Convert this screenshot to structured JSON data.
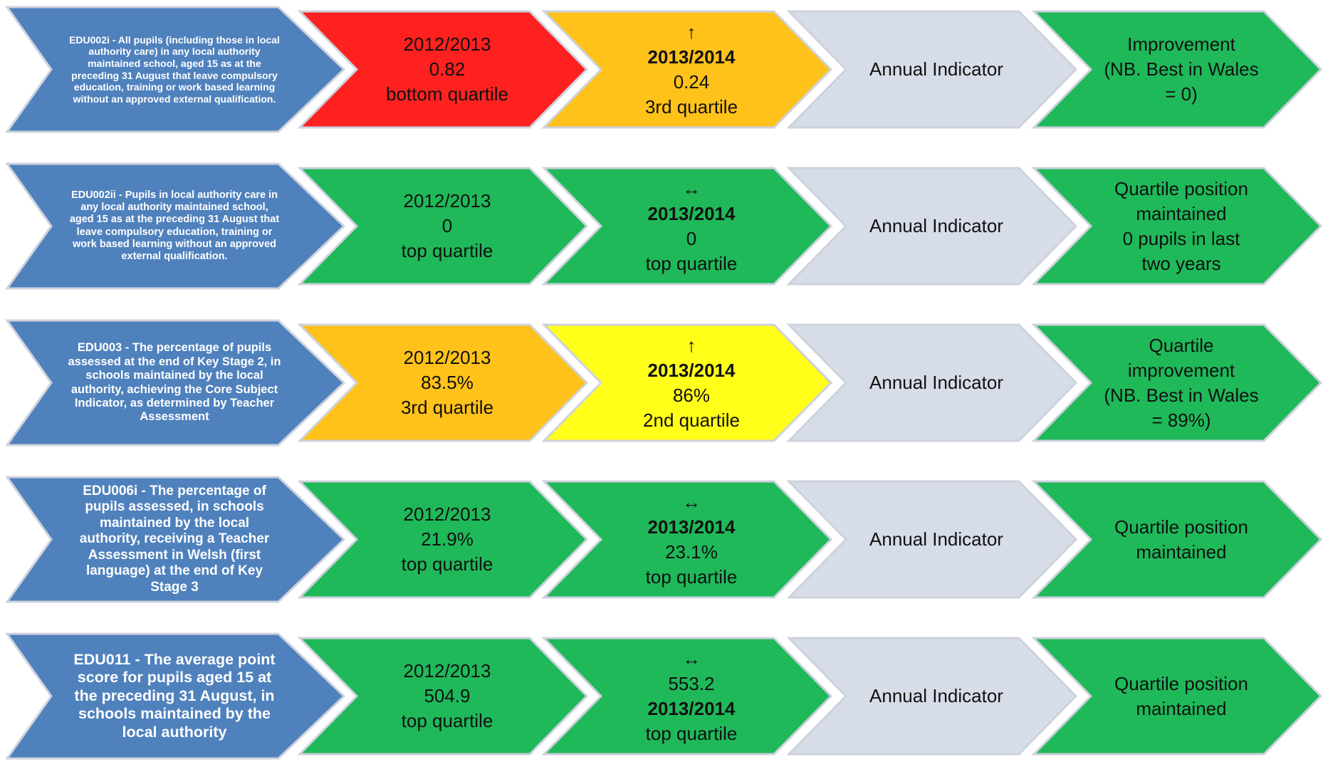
{
  "rows": [
    {
      "indicator": "EDU002i - All pupils (including those in local authority care) in any local authority maintained school, aged 15 as at the preceding 31 August that leave compulsory education, training or work based learning without an approved external qualification.",
      "prev": {
        "color": "#ff2020",
        "lines": [
          "2012/2013",
          "0.82",
          "bottom quartile"
        ]
      },
      "curr": {
        "color": "#ffc21a",
        "lines": [
          "↑",
          "2013/2014",
          "0.24",
          "3rd quartile"
        ]
      },
      "annual": "Annual Indicator",
      "comment": [
        "Improvement",
        "(NB. Best in Wales",
        "= 0)"
      ]
    },
    {
      "indicator": "EDU002ii - Pupils in local authority care in any local authority maintained school, aged 15 as at the preceding 31 August that leave compulsory education, training or work based learning without an approved external qualification.",
      "prev": {
        "color": "#1fb95a",
        "lines": [
          "2012/2013",
          "0",
          "top quartile"
        ]
      },
      "curr": {
        "color": "#1fb95a",
        "lines": [
          "↔",
          "2013/2014",
          "0",
          "top quartile"
        ]
      },
      "annual": "Annual Indicator",
      "comment": [
        "Quartile position",
        "maintained",
        "0 pupils in last",
        "two years"
      ]
    },
    {
      "indicator": "EDU003 - The percentage of pupils assessed at the end of Key Stage 2, in schools maintained by the local authority, achieving the Core Subject Indicator, as determined by Teacher Assessment",
      "prev": {
        "color": "#ffc21a",
        "lines": [
          "2012/2013",
          "83.5%",
          "3rd quartile"
        ]
      },
      "curr": {
        "color": "#ffff1a",
        "lines": [
          "↑",
          "2013/2014",
          "86%",
          "2nd quartile"
        ]
      },
      "annual": "Annual Indicator",
      "comment": [
        "Quartile",
        "improvement",
        "(NB. Best in Wales",
        "= 89%)"
      ]
    },
    {
      "indicator": "EDU006i - The percentage of pupils assessed, in schools maintained by the local authority, receiving a Teacher Assessment in Welsh (first language) at the end of Key Stage 3",
      "prev": {
        "color": "#1fb95a",
        "lines": [
          "2012/2013",
          "21.9%",
          "top quartile"
        ]
      },
      "curr": {
        "color": "#1fb95a",
        "lines": [
          "↔",
          "2013/2014",
          "23.1%",
          "top quartile"
        ]
      },
      "annual": "Annual Indicator",
      "comment": [
        "Quartile position",
        "maintained"
      ]
    },
    {
      "indicator": "EDU011 - The average point score for pupils aged 15 at the preceding 31 August, in schools maintained by the local authority",
      "prev": {
        "color": "#1fb95a",
        "lines": [
          "2012/2013",
          "504.9",
          "top quartile"
        ]
      },
      "curr": {
        "color": "#1fb95a",
        "lines": [
          "↔",
          "553.2",
          "2013/2014",
          "top quartile"
        ]
      },
      "annual": "Annual Indicator",
      "comment": [
        "Quartile position",
        "maintained"
      ]
    }
  ]
}
